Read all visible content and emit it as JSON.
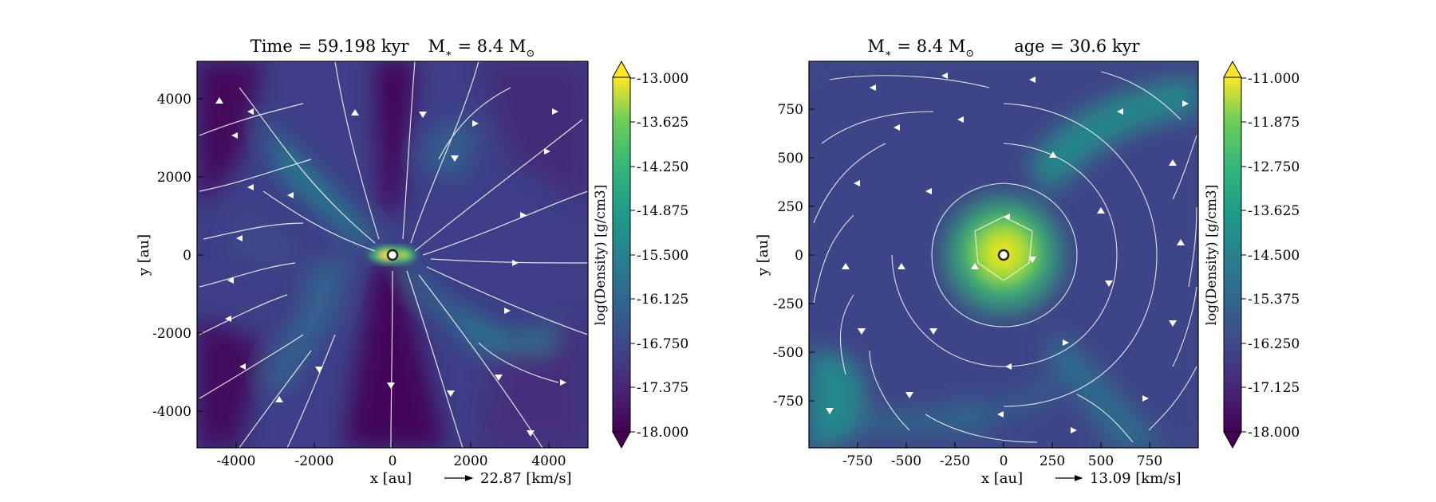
{
  "figure": {
    "panels": [
      {
        "title_left": "Time = 59.198 kyr",
        "title_right": "M",
        "title_right_sub": "∗",
        "title_right_tail": " = 8.4 M",
        "title_right_sun": "⊙",
        "xlabel": "x [au]",
        "ylabel": "y [au]",
        "xticks": [
          "-4000",
          "-2000",
          "0",
          "2000",
          "4000"
        ],
        "yticks": [
          "4000",
          "2000",
          "0",
          "-2000",
          "-4000"
        ],
        "quiver_key": "22.87 [km/s]",
        "colorbar": {
          "label": "log(Density) [g/cm3]",
          "ticks": [
            "-13.000",
            "-13.625",
            "-14.250",
            "-14.875",
            "-15.500",
            "-16.125",
            "-16.750",
            "-17.375",
            "-18.000"
          ],
          "range": [
            -18.0,
            -13.0
          ]
        }
      },
      {
        "title_left": "M",
        "title_left_sub": "∗",
        "title_left_tail": " = 8.4 M",
        "title_left_sun": "⊙",
        "title_right": "age = 30.6 kyr",
        "xlabel": "x [au]",
        "ylabel": "y [au]",
        "xticks": [
          "-750",
          "-500",
          "-250",
          "0",
          "250",
          "500",
          "750"
        ],
        "yticks": [
          "750",
          "500",
          "250",
          "0",
          "-250",
          "-500",
          "-750"
        ],
        "quiver_key": "13.09 [km/s]",
        "colorbar": {
          "label": "log(Density) [g/cm3]",
          "ticks": [
            "-11.000",
            "-11.875",
            "-12.750",
            "-13.625",
            "-14.500",
            "-15.375",
            "-16.250",
            "-17.125",
            "-18.000"
          ],
          "range": [
            -18.0,
            -11.0
          ]
        }
      }
    ],
    "colors": {
      "low_density": "#440154",
      "mid_low": "#3b528b",
      "mid": "#21918c",
      "mid_high": "#5ec962",
      "high_density": "#fde725",
      "streamline": "#ffffff"
    }
  }
}
